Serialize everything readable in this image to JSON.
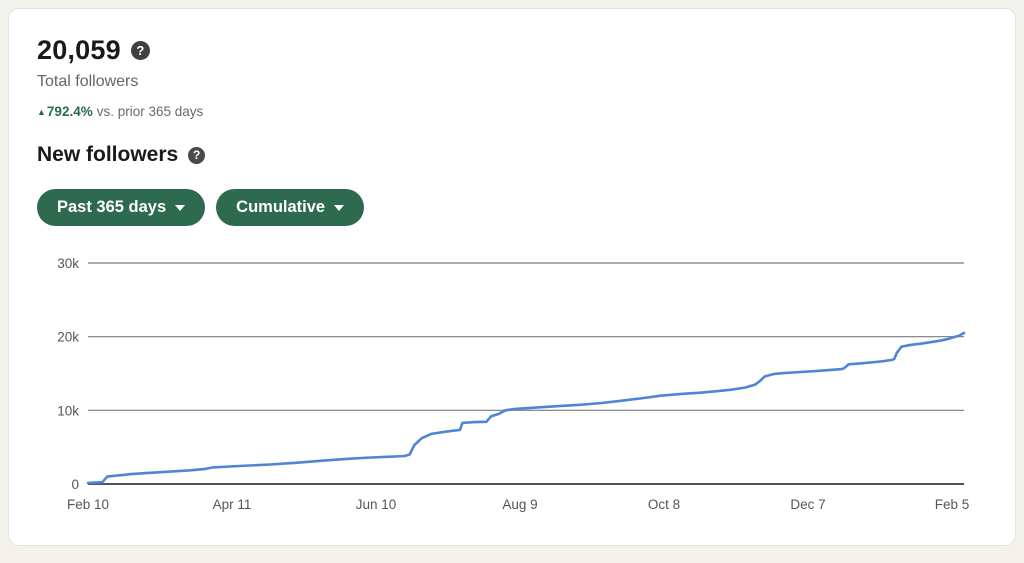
{
  "page": {
    "background": "#f3f1ec",
    "card_background": "#ffffff"
  },
  "stats": {
    "total_followers_value": "20,059",
    "total_followers_label": "Total followers",
    "delta_arrow": "▲",
    "delta_percent": "792.4%",
    "delta_context": "vs. prior 365 days",
    "help_icon_glyph": "?"
  },
  "section": {
    "title": "New followers",
    "help_icon_glyph": "?"
  },
  "filters": {
    "time_range_label": "Past 365 days",
    "mode_label": "Cumulative"
  },
  "colors": {
    "accent_green": "#2d6a4f",
    "positive_green": "#2b6a4a",
    "line_blue": "#5085d6",
    "grid_gray": "#797a7d",
    "axis_dark": "#515257",
    "text_primary": "#1a1a1a",
    "text_secondary": "#66655f"
  },
  "chart_data": {
    "type": "line",
    "title": "New followers",
    "series_name": "Cumulative new followers",
    "legend": "none",
    "grid": "horizontal",
    "x_tick_labels": [
      "Feb 10",
      "Apr 11",
      "Jun 10",
      "Aug 9",
      "Oct 8",
      "Dec 7",
      "Feb 5"
    ],
    "x_tick_days": [
      0,
      60,
      120,
      180,
      240,
      300,
      360
    ],
    "x_range_days": [
      0,
      365
    ],
    "y_ticks": [
      0,
      10000,
      20000,
      30000
    ],
    "y_tick_labels": [
      "0",
      "10k",
      "20k",
      "30k"
    ],
    "ylim": [
      0,
      30000
    ],
    "line_color": "#5085d6",
    "points": [
      [
        0,
        150
      ],
      [
        6,
        250
      ],
      [
        8,
        1000
      ],
      [
        18,
        1350
      ],
      [
        30,
        1600
      ],
      [
        42,
        1850
      ],
      [
        49,
        2050
      ],
      [
        52,
        2250
      ],
      [
        63,
        2450
      ],
      [
        76,
        2650
      ],
      [
        88,
        2900
      ],
      [
        101,
        3250
      ],
      [
        110,
        3450
      ],
      [
        118,
        3600
      ],
      [
        126,
        3700
      ],
      [
        132,
        3800
      ],
      [
        134,
        4000
      ],
      [
        136,
        5300
      ],
      [
        139,
        6200
      ],
      [
        143,
        6800
      ],
      [
        149,
        7100
      ],
      [
        154,
        7300
      ],
      [
        155,
        7350
      ],
      [
        156,
        8300
      ],
      [
        161,
        8400
      ],
      [
        166,
        8450
      ],
      [
        168,
        9200
      ],
      [
        171,
        9500
      ],
      [
        174,
        10000
      ],
      [
        178,
        10200
      ],
      [
        185,
        10350
      ],
      [
        197,
        10600
      ],
      [
        205,
        10750
      ],
      [
        214,
        11000
      ],
      [
        222,
        11300
      ],
      [
        230,
        11600
      ],
      [
        239,
        12000
      ],
      [
        248,
        12250
      ],
      [
        255,
        12400
      ],
      [
        262,
        12600
      ],
      [
        268,
        12800
      ],
      [
        274,
        13100
      ],
      [
        276,
        13300
      ],
      [
        278,
        13500
      ],
      [
        280,
        14000
      ],
      [
        282,
        14600
      ],
      [
        286,
        14950
      ],
      [
        290,
        15050
      ],
      [
        297,
        15200
      ],
      [
        304,
        15350
      ],
      [
        310,
        15500
      ],
      [
        314,
        15600
      ],
      [
        315,
        15700
      ],
      [
        317,
        16250
      ],
      [
        321,
        16350
      ],
      [
        326,
        16500
      ],
      [
        331,
        16650
      ],
      [
        335,
        16850
      ],
      [
        336,
        17000
      ],
      [
        337,
        17800
      ],
      [
        339,
        18650
      ],
      [
        343,
        18900
      ],
      [
        347,
        19050
      ],
      [
        351,
        19250
      ],
      [
        355,
        19450
      ],
      [
        358,
        19650
      ],
      [
        361,
        19950
      ],
      [
        363,
        20150
      ],
      [
        365,
        20500
      ]
    ]
  }
}
